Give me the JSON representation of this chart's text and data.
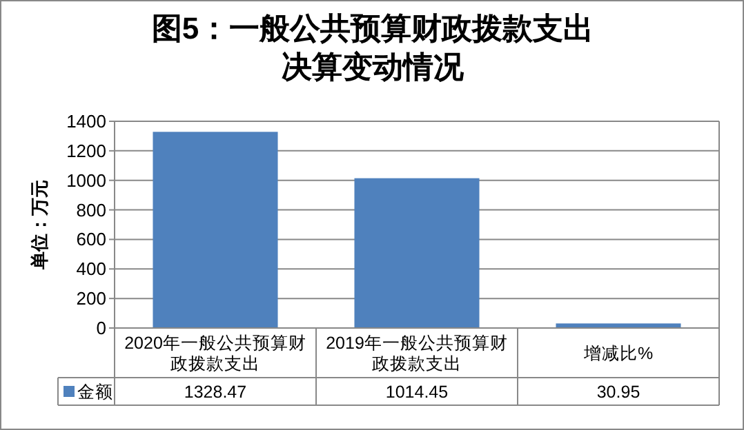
{
  "chart_data": {
    "type": "bar",
    "title": "图5：一般公共预算财政拨款支出决算变动情况",
    "ylabel": "单位：万元",
    "categories": [
      "2020年一般公共预算财政拨款支出",
      "2019年一般公共预算财政拨款支出",
      "增减比%"
    ],
    "series": [
      {
        "name": "金额",
        "color": "#4f81bd",
        "values": [
          1328.47,
          1014.45,
          30.95
        ]
      }
    ],
    "ylim": [
      0,
      1400
    ],
    "yticks": [
      0,
      200,
      400,
      600,
      800,
      1000,
      1200,
      1400
    ],
    "grid": "y",
    "data_labels": true,
    "legend": "bottom left"
  }
}
